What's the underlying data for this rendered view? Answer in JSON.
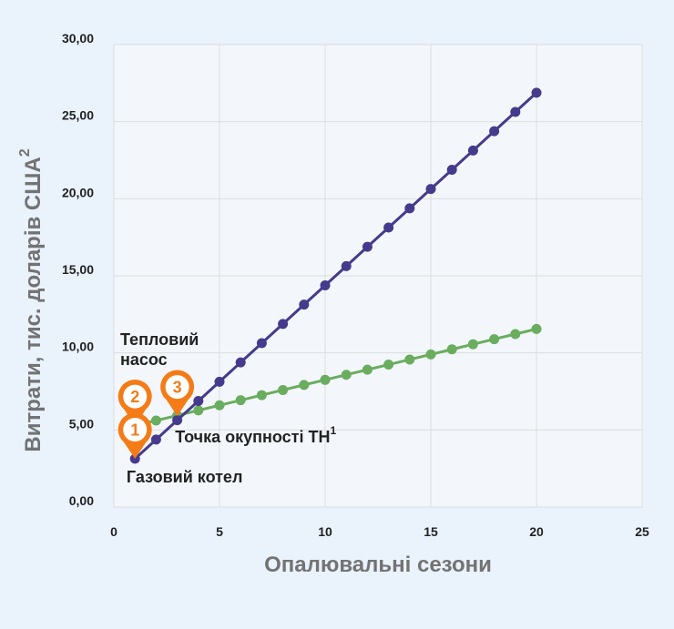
{
  "chart_data": {
    "type": "line",
    "title": "",
    "xlabel": "Опалювальні сезони",
    "ylabel": "Витрати, тис. доларів США",
    "ylabel_superscript": "2",
    "xlim": [
      0,
      25
    ],
    "ylim": [
      0,
      30
    ],
    "x_ticks": [
      "0",
      "5",
      "10",
      "15",
      "20",
      "25"
    ],
    "y_ticks": [
      "0,00",
      "5,00",
      "10,00",
      "15,00",
      "20,00",
      "25,00",
      "30,00"
    ],
    "grid": true,
    "legend": "none",
    "x": [
      1,
      2,
      3,
      4,
      5,
      6,
      7,
      8,
      9,
      10,
      11,
      12,
      13,
      14,
      15,
      16,
      17,
      18,
      19,
      20
    ],
    "series": [
      {
        "name": "Газовий котел",
        "color": "#463a8c",
        "values": [
          3.13,
          4.38,
          5.63,
          6.88,
          8.13,
          9.38,
          10.63,
          11.88,
          13.13,
          14.38,
          15.63,
          16.88,
          18.13,
          19.38,
          20.63,
          21.88,
          23.13,
          24.38,
          25.63,
          26.88
        ]
      },
      {
        "name": "Тепловий насос",
        "color": "#6aad5e",
        "values": [
          5.28,
          5.61,
          5.94,
          6.27,
          6.6,
          6.93,
          7.26,
          7.59,
          7.92,
          8.25,
          8.58,
          8.91,
          9.24,
          9.57,
          9.9,
          10.23,
          10.56,
          10.89,
          11.22,
          11.55
        ]
      }
    ],
    "annotations": [
      {
        "text": "Тепловий",
        "x": 0.3,
        "y": 10.5
      },
      {
        "text": "насос",
        "x": 0.3,
        "y": 9.2
      },
      {
        "text": "Точка окупності ТН",
        "superscript": "1",
        "x": 2.9,
        "y": 4.2
      },
      {
        "text": "Газовий котел",
        "x": 0.6,
        "y": 1.6
      }
    ],
    "markers": [
      {
        "label": "1",
        "x": 1,
        "y": 3.13,
        "color": "#f57b17"
      },
      {
        "label": "2",
        "x": 1,
        "y": 5.28,
        "color": "#f57b17"
      },
      {
        "label": "3",
        "x": 3,
        "y": 5.9,
        "color": "#f57b17"
      }
    ]
  }
}
